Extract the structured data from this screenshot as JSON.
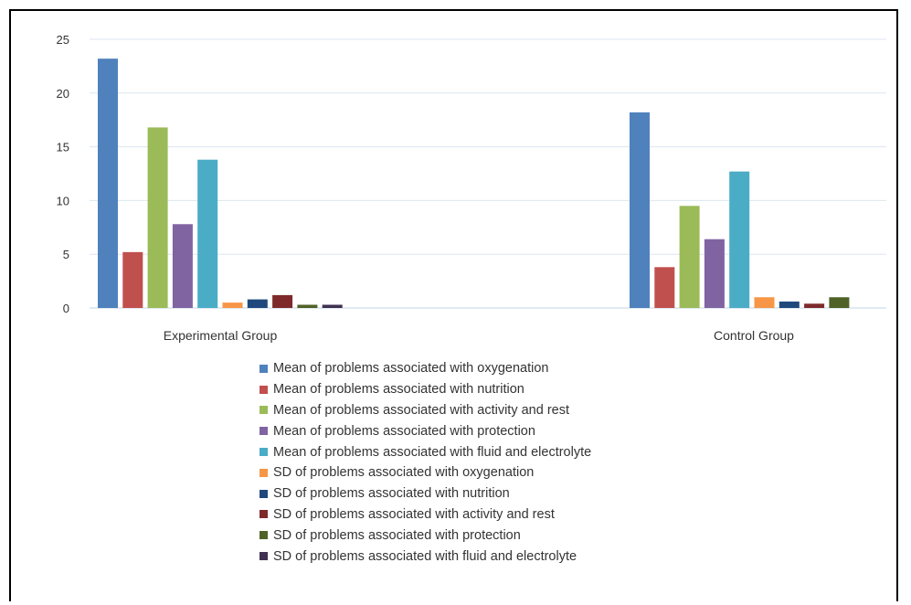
{
  "chart_data": {
    "type": "bar",
    "categories": [
      "Experimental Group",
      "Control Group"
    ],
    "ylim": [
      0,
      25
    ],
    "yticks": [
      0,
      5,
      10,
      15,
      20,
      25
    ],
    "grid": true,
    "legend_position": "bottom",
    "series": [
      {
        "name": "Mean of problems associated with oxygenation",
        "color": "#4f81bd",
        "values": [
          23.2,
          18.2
        ]
      },
      {
        "name": "Mean of problems associated with nutrition",
        "color": "#c0504d",
        "values": [
          5.2,
          3.8
        ]
      },
      {
        "name": "Mean of problems associated with activity and rest",
        "color": "#9bbb59",
        "values": [
          16.8,
          9.5
        ]
      },
      {
        "name": "Mean of problems associated with protection",
        "color": "#8064a2",
        "values": [
          7.8,
          6.4
        ]
      },
      {
        "name": "Mean of problems associated with fluid and electrolyte",
        "color": "#4bacc6",
        "values": [
          13.8,
          12.7
        ]
      },
      {
        "name": "SD of  problems associated with oxygenation",
        "color": "#f79646",
        "values": [
          0.5,
          1.0
        ]
      },
      {
        "name": "SD of problems associated with nutrition",
        "color": "#1f497d",
        "values": [
          0.8,
          0.6
        ]
      },
      {
        "name": "SD  of problems associated with activity and rest",
        "color": "#7f2a2a",
        "values": [
          1.2,
          0.4
        ]
      },
      {
        "name": "SD of problems associated with protection",
        "color": "#4f6228",
        "values": [
          0.3,
          1.0
        ]
      },
      {
        "name": "SD  of problems associated with fluid and electrolyte",
        "color": "#3f3151",
        "values": [
          0.3,
          0.0
        ]
      }
    ]
  }
}
